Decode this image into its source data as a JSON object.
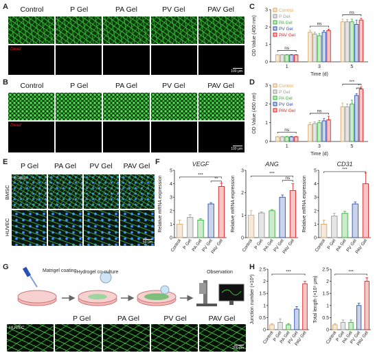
{
  "panels": {
    "A": "A",
    "B": "B",
    "C": "C",
    "D": "D",
    "E": "E",
    "F": "F",
    "G": "G",
    "H": "H"
  },
  "groups": [
    "Control",
    "P Gel",
    "PA Gel",
    "PV Gel",
    "PAV Gel"
  ],
  "groups_no_control": [
    "P Gel",
    "PA Gel",
    "PV Gel",
    "PAV Gel"
  ],
  "colors": [
    "#d8a866",
    "#9a9a9a",
    "#36b236",
    "#2a4fb5",
    "#e02020"
  ],
  "dead_label": "Dead",
  "scale_100": "100 μm",
  "scale_50": "50 μm",
  "scale_200": "200 μm",
  "e_rows": [
    "BMSC",
    "HUVEC"
  ],
  "e_stain": "F-actin",
  "g_huvec": "HUVEC",
  "g_steps": [
    "Matrigel coating",
    "Hydrogel co-culture",
    "Observation"
  ],
  "chart_data": [
    {
      "panel": "C",
      "type": "bar",
      "categories": [
        "1",
        "3",
        "5"
      ],
      "xlabel": "Time (d)",
      "ylabel": "OD Value (450 nm)",
      "ylim": [
        0,
        3
      ],
      "yticks": [
        0,
        1,
        2,
        3
      ],
      "series": [
        {
          "name": "Control",
          "values": [
            0.4,
            1.7,
            2.3
          ],
          "err": [
            0.02,
            0.12,
            0.15
          ]
        },
        {
          "name": "P Gel",
          "values": [
            0.4,
            1.6,
            2.3
          ],
          "err": [
            0.02,
            0.1,
            0.12
          ]
        },
        {
          "name": "PA Gel",
          "values": [
            0.4,
            1.5,
            2.3
          ],
          "err": [
            0.02,
            0.12,
            0.15
          ]
        },
        {
          "name": "PV Gel",
          "values": [
            0.4,
            1.7,
            2.15
          ],
          "err": [
            0.02,
            0.1,
            0.25
          ]
        },
        {
          "name": "PAV Gel",
          "values": [
            0.4,
            1.8,
            2.4
          ],
          "err": [
            0.02,
            0.08,
            0.1
          ]
        }
      ],
      "annotations": [
        "ns",
        "ns",
        "ns"
      ]
    },
    {
      "panel": "D",
      "type": "bar",
      "categories": [
        "1",
        "3",
        "5"
      ],
      "xlabel": "Time (d)",
      "ylabel": "OD Value (450 nm)",
      "ylim": [
        0,
        3
      ],
      "yticks": [
        0,
        1,
        2,
        3
      ],
      "series": [
        {
          "name": "Control",
          "values": [
            0.25,
            0.9,
            1.85
          ],
          "err": [
            0.02,
            0.1,
            0.2
          ]
        },
        {
          "name": "P Gel",
          "values": [
            0.25,
            0.95,
            1.85
          ],
          "err": [
            0.02,
            0.1,
            0.15
          ]
        },
        {
          "name": "PA Gel",
          "values": [
            0.25,
            1.0,
            2.0
          ],
          "err": [
            0.02,
            0.12,
            0.2
          ]
        },
        {
          "name": "PV Gel",
          "values": [
            0.25,
            1.1,
            2.45
          ],
          "err": [
            0.02,
            0.12,
            0.1
          ]
        },
        {
          "name": "PAV Gel",
          "values": [
            0.25,
            1.15,
            2.8
          ],
          "err": [
            0.02,
            0.2,
            0.1
          ]
        }
      ],
      "annotations": [
        "ns",
        "ns",
        "***",
        "*"
      ]
    },
    {
      "panel": "F",
      "type": "bar",
      "title": "VEGF",
      "categories": [
        "Control",
        "P Gel",
        "PA Gel",
        "PV Gel",
        "PAV Gel"
      ],
      "ylabel": "Relative mRNA expression",
      "ylim": [
        0,
        5
      ],
      "yticks": [
        0,
        1,
        2,
        3,
        4,
        5
      ],
      "values": [
        1.0,
        1.5,
        1.3,
        2.5,
        3.8
      ],
      "err": [
        0.3,
        0.2,
        0.1,
        0.1,
        0.25
      ],
      "annotations": [
        "***",
        "**"
      ]
    },
    {
      "panel": "F",
      "type": "bar",
      "title": "ANG",
      "categories": [
        "Control",
        "P Gel",
        "PA Gel",
        "PV Gel",
        "PAV Gel"
      ],
      "ylabel": "Relative mRNA expression",
      "ylim": [
        0,
        3
      ],
      "yticks": [
        0,
        1,
        2,
        3
      ],
      "values": [
        1.0,
        1.1,
        1.2,
        1.8,
        2.1
      ],
      "err": [
        0.2,
        0.05,
        0.05,
        0.1,
        0.3
      ],
      "annotations": [
        "***",
        "ns"
      ]
    },
    {
      "panel": "F",
      "type": "bar",
      "title": "CD31",
      "categories": [
        "Control",
        "P Gel",
        "PA Gel",
        "PV Gel",
        "PAV Gel"
      ],
      "ylabel": "Relative mRNA expression",
      "ylim": [
        0,
        5
      ],
      "yticks": [
        0,
        1,
        2,
        3,
        4,
        5
      ],
      "values": [
        1.0,
        1.6,
        1.8,
        2.5,
        4.0
      ],
      "err": [
        0.3,
        0.2,
        0.15,
        0.15,
        0.8
      ],
      "annotations": [
        "***"
      ]
    },
    {
      "panel": "H",
      "type": "bar",
      "categories": [
        "Control",
        "P Gel",
        "PA Gel",
        "PV Gel",
        "PAV Gel"
      ],
      "ylabel": "Junction number (×10³)",
      "ylim": [
        0,
        2.5
      ],
      "yticks": [
        0,
        0.5,
        1,
        1.5,
        2,
        2.5
      ],
      "values": [
        0.2,
        0.3,
        0.2,
        0.85,
        1.9
      ],
      "err": [
        0.05,
        0.15,
        0.05,
        0.1,
        0.1
      ],
      "annotations": [
        "***"
      ]
    },
    {
      "panel": "H",
      "type": "bar",
      "categories": [
        "Control",
        "P Gel",
        "PA Gel",
        "PV Gel",
        "PAV Gel"
      ],
      "ylabel": "Total length (×10⁵ μm)",
      "ylim": [
        0,
        2.5
      ],
      "yticks": [
        0,
        0.5,
        1,
        1.5,
        2,
        2.5
      ],
      "values": [
        0.2,
        0.3,
        0.3,
        1.0,
        2.0
      ],
      "err": [
        0.05,
        0.1,
        0.1,
        0.1,
        0.15
      ],
      "annotations": [
        "***"
      ]
    }
  ]
}
